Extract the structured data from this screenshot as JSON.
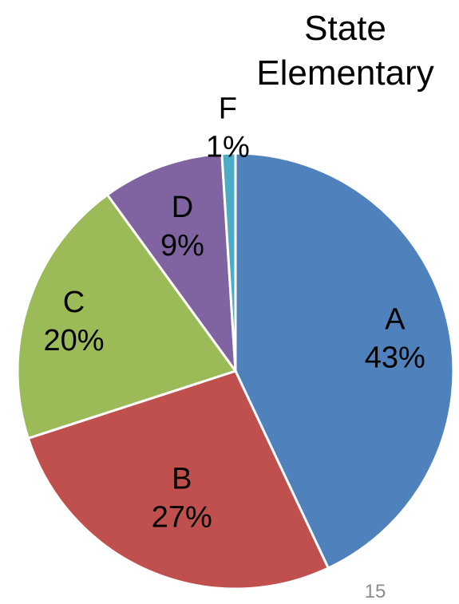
{
  "title_line1": "State",
  "title_line2": "Elementary",
  "page_number": "15",
  "chart_data": {
    "type": "pie",
    "title": "State Elementary",
    "slices": [
      {
        "label": "A",
        "value": 43,
        "display": "43%",
        "color": "#4F81BD"
      },
      {
        "label": "B",
        "value": 27,
        "display": "27%",
        "color": "#C0504D"
      },
      {
        "label": "C",
        "value": 20,
        "display": "20%",
        "color": "#9BBB59"
      },
      {
        "label": "D",
        "value": 9,
        "display": "9%",
        "color": "#8064A2"
      },
      {
        "label": "F",
        "value": 1,
        "display": "1%",
        "color": "#4BACC6"
      }
    ]
  }
}
